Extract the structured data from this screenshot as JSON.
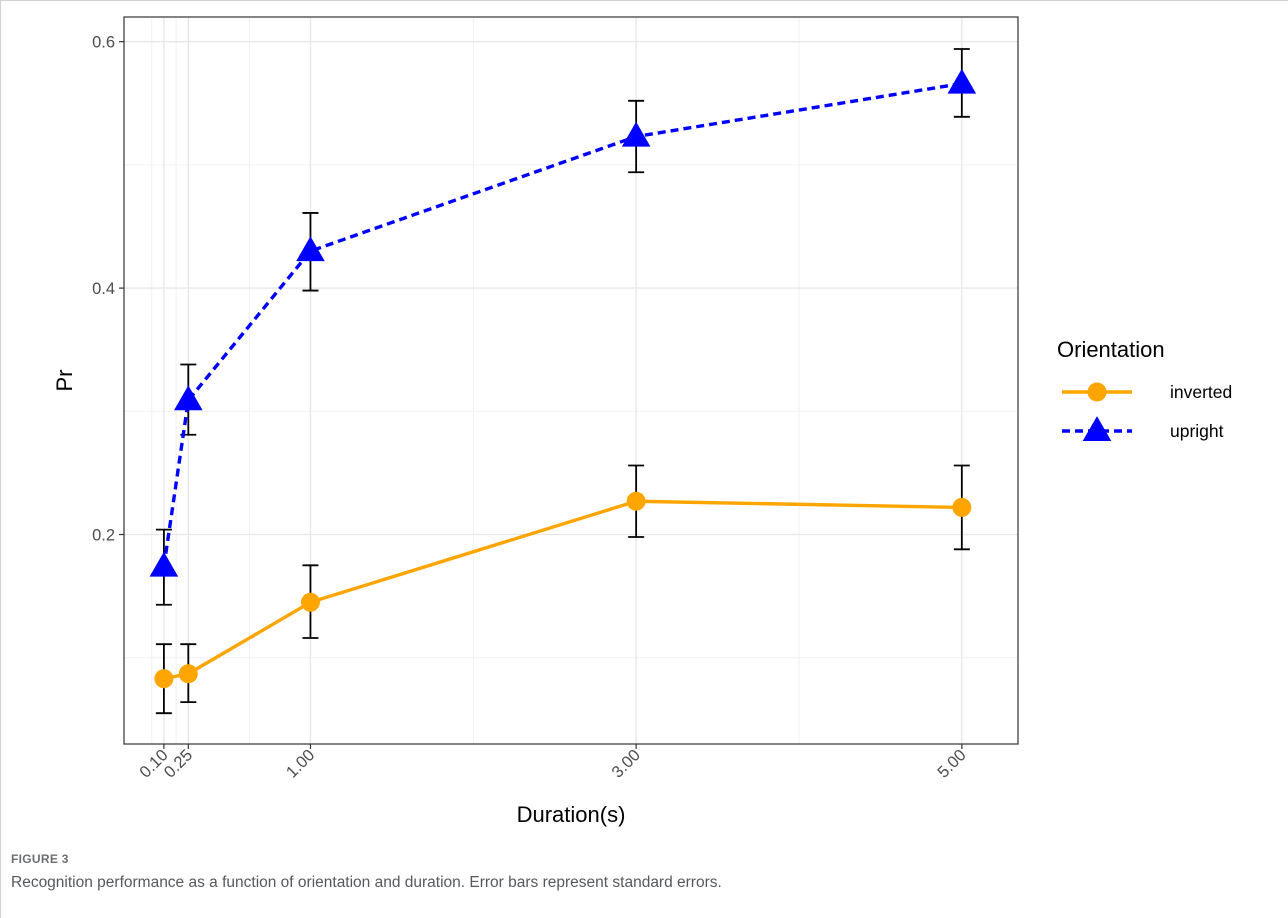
{
  "figure": {
    "label": "FIGURE 3",
    "caption": "Recognition performance as a function of orientation and duration. Error bars represent standard errors."
  },
  "chart_data": {
    "type": "line",
    "xlabel": "Duration(s)",
    "ylabel": "Pr",
    "xlim": [
      -0.145,
      5.345
    ],
    "ylim": [
      0.03,
      0.62
    ],
    "x_ticks": [
      0.1,
      0.25,
      1.0,
      3.0,
      5.0
    ],
    "x_tick_labels": [
      "0.10",
      "0.25",
      "1.00",
      "3.00",
      "5.00"
    ],
    "y_ticks": [
      0.2,
      0.4,
      0.6
    ],
    "y_tick_labels": [
      "0.2",
      "0.4",
      "0.6"
    ],
    "grid": true,
    "legend": {
      "title": "Orientation",
      "position": "right"
    },
    "series": [
      {
        "name": "inverted",
        "color": "#FFA500",
        "line_style": "solid",
        "marker": "circle",
        "x": [
          0.1,
          0.25,
          1.0,
          3.0,
          5.0
        ],
        "y": [
          0.083,
          0.087,
          0.145,
          0.227,
          0.222
        ],
        "se_lower": [
          0.055,
          0.064,
          0.116,
          0.198,
          0.188
        ],
        "se_upper": [
          0.111,
          0.111,
          0.175,
          0.256,
          0.256
        ]
      },
      {
        "name": "upright",
        "color": "#0000FF",
        "line_style": "dashed",
        "marker": "triangle",
        "x": [
          0.1,
          0.25,
          1.0,
          3.0,
          5.0
        ],
        "y": [
          0.174,
          0.309,
          0.43,
          0.523,
          0.566
        ],
        "se_lower": [
          0.143,
          0.281,
          0.398,
          0.494,
          0.539
        ],
        "se_upper": [
          0.204,
          0.338,
          0.461,
          0.552,
          0.594
        ]
      }
    ]
  }
}
